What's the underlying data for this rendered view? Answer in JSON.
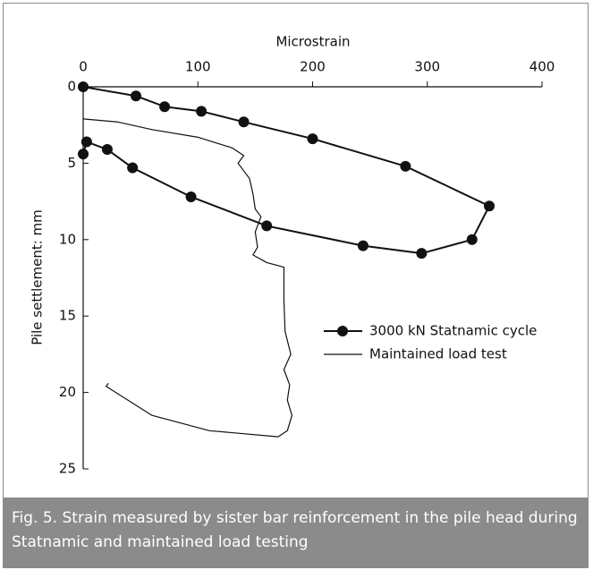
{
  "chart_data": {
    "type": "line",
    "x_axis_label": "Microstrain",
    "y_axis_label": "Pile settlement: mm",
    "x_axis_position": "top",
    "xlim": [
      0,
      400
    ],
    "xticks": [
      0,
      100,
      200,
      300,
      400
    ],
    "ylim": [
      25,
      0
    ],
    "yticks": [
      0,
      5,
      10,
      15,
      20,
      25
    ],
    "grid": false,
    "series": [
      {
        "name": "3000 kN Statnamic cycle",
        "color": "#111111",
        "marker": "circle",
        "x": [
          0,
          46,
          71,
          103,
          140,
          200,
          281,
          354,
          339,
          295,
          244,
          160,
          94,
          43,
          21,
          3,
          0
        ],
        "y": [
          0,
          0.6,
          1.3,
          1.6,
          2.3,
          3.4,
          5.2,
          7.8,
          10.0,
          10.9,
          10.4,
          9.1,
          7.2,
          5.3,
          4.1,
          3.6,
          4.4
        ]
      },
      {
        "name": "Maintained load test",
        "color": "#111111",
        "marker": "none",
        "x": [
          0,
          30,
          60,
          100,
          130,
          140,
          135,
          140,
          145,
          148,
          150,
          155,
          150,
          152,
          148,
          160,
          175,
          175,
          176,
          181,
          175,
          180,
          178,
          182,
          178,
          170,
          110,
          60,
          20,
          22
        ],
        "y": [
          2.1,
          2.3,
          2.8,
          3.3,
          4.0,
          4.5,
          5.0,
          5.5,
          6.0,
          7.0,
          8.0,
          8.5,
          9.5,
          10.5,
          11.0,
          11.5,
          11.8,
          14,
          16,
          17.5,
          18.5,
          19.5,
          20.5,
          21.5,
          22.5,
          22.9,
          22.5,
          21.5,
          19.6,
          19.4
        ]
      }
    ]
  },
  "caption": "Fig. 5. Strain measured by sister bar reinforcement in the pile head during Statnamic and maintained load testing"
}
